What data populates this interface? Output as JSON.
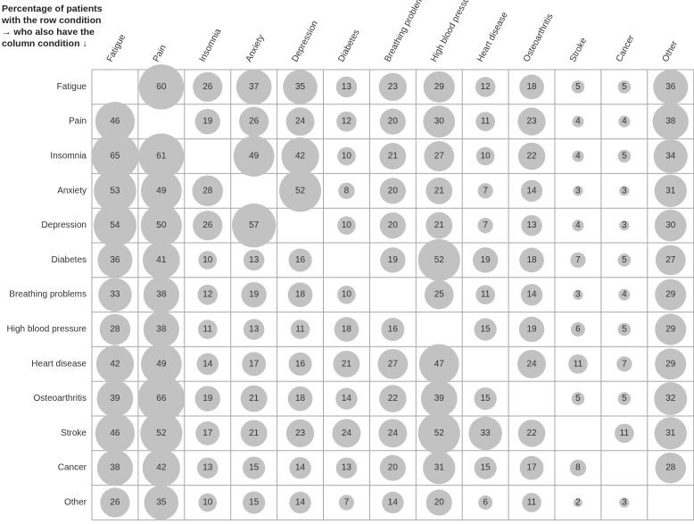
{
  "caption": [
    "Percentage of patients",
    "with the row condition",
    "→ who also have the",
    "column condition ↓"
  ],
  "chart_data": {
    "type": "heatmap",
    "style": "bubble matrix",
    "colors": {
      "bubble": "#c2c2c2",
      "grid": "#a8a8a8",
      "text": "#333333"
    },
    "columns": [
      "Fatigue",
      "Pain",
      "Insomnia",
      "Anxiety",
      "Depression",
      "Diabetes",
      "Breathing problems",
      "High blood pressure",
      "Heart disease",
      "Osteoarthritis",
      "Stroke",
      "Cancer",
      "Other"
    ],
    "rows": [
      "Fatigue",
      "Pain",
      "Insomnia",
      "Anxiety",
      "Depression",
      "Diabetes",
      "Breathing problems",
      "High blood pressure",
      "Heart disease",
      "Osteoarthritis",
      "Stroke",
      "Cancer",
      "Other"
    ],
    "values": [
      [
        null,
        60,
        26,
        37,
        35,
        13,
        23,
        29,
        12,
        18,
        5,
        5,
        36
      ],
      [
        46,
        null,
        19,
        26,
        24,
        12,
        20,
        30,
        11,
        23,
        4,
        4,
        38
      ],
      [
        65,
        61,
        null,
        49,
        42,
        10,
        21,
        27,
        10,
        22,
        4,
        5,
        34
      ],
      [
        53,
        49,
        28,
        null,
        52,
        8,
        20,
        21,
        7,
        14,
        3,
        3,
        31
      ],
      [
        54,
        50,
        26,
        57,
        null,
        10,
        20,
        21,
        7,
        13,
        4,
        3,
        30
      ],
      [
        36,
        41,
        10,
        13,
        16,
        null,
        19,
        52,
        19,
        18,
        7,
        5,
        27
      ],
      [
        33,
        38,
        12,
        19,
        18,
        10,
        null,
        25,
        11,
        14,
        3,
        4,
        29
      ],
      [
        28,
        38,
        11,
        13,
        11,
        18,
        16,
        null,
        15,
        19,
        6,
        5,
        29
      ],
      [
        42,
        49,
        14,
        17,
        16,
        21,
        27,
        47,
        null,
        24,
        11,
        7,
        29
      ],
      [
        39,
        66,
        19,
        21,
        18,
        14,
        22,
        39,
        15,
        null,
        5,
        5,
        32
      ],
      [
        46,
        52,
        17,
        21,
        23,
        24,
        24,
        52,
        33,
        22,
        null,
        11,
        31
      ],
      [
        38,
        42,
        13,
        15,
        14,
        13,
        20,
        31,
        15,
        17,
        8,
        null,
        28
      ],
      [
        26,
        35,
        10,
        15,
        14,
        7,
        14,
        20,
        6,
        11,
        2,
        3,
        null
      ]
    ]
  }
}
